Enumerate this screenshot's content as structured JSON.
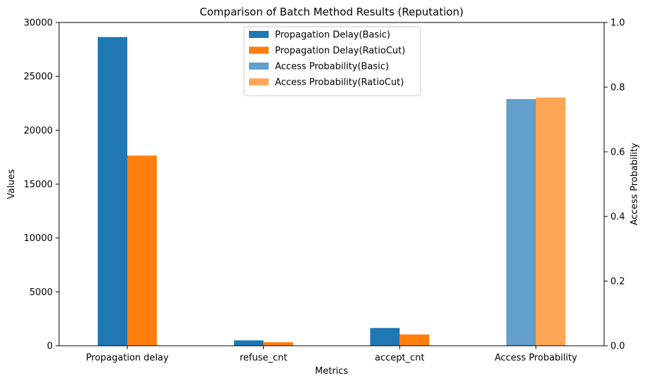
{
  "chart_data": {
    "type": "bar",
    "title": "Comparison of Batch Method Results (Reputation)",
    "xlabel": "Metrics",
    "ylabel": "Values",
    "y2label": "Access Probability",
    "categories": [
      "Propagation delay",
      "refuse_cnt",
      "accept_cnt",
      "Access Probability"
    ],
    "ylim": [
      0,
      30000
    ],
    "y2lim": [
      0,
      1.0
    ],
    "yticks": [
      "0",
      "5000",
      "10000",
      "15000",
      "20000",
      "25000",
      "30000"
    ],
    "y2ticks": [
      "0.0",
      "0.2",
      "0.4",
      "0.6",
      "0.8",
      "1.0"
    ],
    "grid": false,
    "legend_position": "top-center",
    "series": [
      {
        "name": "Propagation Delay(Basic)",
        "axis": "left",
        "color": "#1f77b4",
        "values": [
          28650,
          500,
          1650,
          null
        ]
      },
      {
        "name": "Propagation Delay(RatioCut)",
        "axis": "left",
        "color": "#ff7f0e",
        "values": [
          17650,
          330,
          1050,
          null
        ]
      },
      {
        "name": "Access Probability(Basic)",
        "axis": "right",
        "color": "#62a0cb",
        "values": [
          null,
          null,
          null,
          0.763
        ]
      },
      {
        "name": "Access Probability(RatioCut)",
        "axis": "right",
        "color": "#ffa557",
        "values": [
          null,
          null,
          null,
          0.768
        ]
      }
    ]
  }
}
